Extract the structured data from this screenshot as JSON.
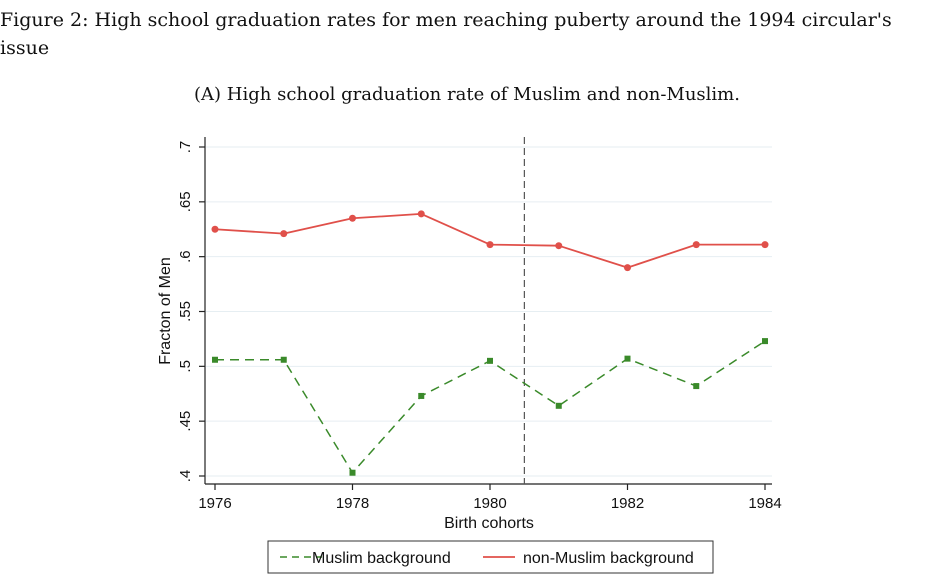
{
  "figure_caption": "Figure 2: High school graduation rates for men reaching puberty around the 1994 circular's issue",
  "chart_data": {
    "type": "line",
    "title": "(A) High school graduation rate of Muslim and non-Muslim.",
    "xlabel": "Birth cohorts",
    "ylabel": "Fracton of Men",
    "x": [
      1976,
      1977,
      1978,
      1979,
      1980,
      1981,
      1982,
      1983,
      1984
    ],
    "xlim": [
      1976,
      1984
    ],
    "ylim": [
      0.4,
      0.7
    ],
    "xticks": [
      "1976",
      "1978",
      "1980",
      "1982",
      "1984"
    ],
    "yticks": [
      ".4",
      ".45",
      ".5",
      ".55",
      ".6",
      ".65",
      ".7"
    ],
    "vline": 1980.5,
    "grid": true,
    "legend_position": "bottom",
    "series": [
      {
        "name": "Muslim background",
        "color": "#3a8a2a",
        "style": "dashed",
        "marker": "square",
        "values": [
          0.506,
          0.506,
          0.403,
          0.473,
          0.505,
          0.464,
          0.507,
          0.482,
          0.523
        ]
      },
      {
        "name": "non-Muslim background",
        "color": "#e0504a",
        "style": "solid",
        "marker": "circle",
        "values": [
          0.625,
          0.621,
          0.635,
          0.639,
          0.611,
          0.61,
          0.59,
          0.611,
          0.611
        ]
      }
    ]
  }
}
